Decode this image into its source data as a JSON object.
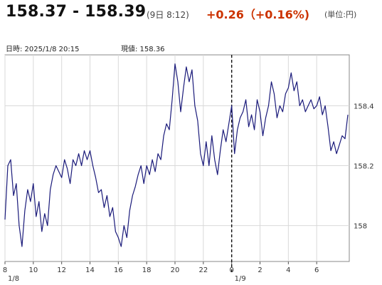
{
  "header": {
    "price_range": "158.37 - 158.39",
    "time": "(9日 8:12)",
    "change": "+0.26（+0.16%)",
    "unit": "(単位:円)"
  },
  "info": {
    "datetime": "日時: 2025/1/8  20:15",
    "current": "現値: 158.36"
  },
  "colors": {
    "line": "#1a1a7a",
    "change": "#cc3300",
    "grid": "#d9d9d9"
  },
  "chart_data": {
    "type": "line",
    "x_label_hours": [
      10,
      12,
      14,
      16,
      18,
      20,
      22,
      0,
      2,
      4,
      6,
      8
    ],
    "x_range_hours": [
      8,
      32.3
    ],
    "date_labels": [
      {
        "hour": 8,
        "label": "1/8"
      },
      {
        "hour": 24,
        "label": "1/9"
      }
    ],
    "divider_hour": 24,
    "y_ticks": [
      158,
      158.2,
      158.4
    ],
    "ylim": [
      157.88,
      158.57
    ],
    "series": [
      {
        "points": [
          [
            8.0,
            158.02
          ],
          [
            8.2,
            158.2
          ],
          [
            8.4,
            158.22
          ],
          [
            8.6,
            158.1
          ],
          [
            8.8,
            158.14
          ],
          [
            9.0,
            158.0
          ],
          [
            9.2,
            157.93
          ],
          [
            9.4,
            158.05
          ],
          [
            9.6,
            158.12
          ],
          [
            9.8,
            158.08
          ],
          [
            10.0,
            158.14
          ],
          [
            10.2,
            158.03
          ],
          [
            10.4,
            158.08
          ],
          [
            10.6,
            157.98
          ],
          [
            10.8,
            158.04
          ],
          [
            11.0,
            158.0
          ],
          [
            11.2,
            158.12
          ],
          [
            11.4,
            158.17
          ],
          [
            11.6,
            158.2
          ],
          [
            11.8,
            158.18
          ],
          [
            12.0,
            158.16
          ],
          [
            12.2,
            158.22
          ],
          [
            12.4,
            158.19
          ],
          [
            12.6,
            158.14
          ],
          [
            12.8,
            158.22
          ],
          [
            13.0,
            158.2
          ],
          [
            13.2,
            158.24
          ],
          [
            13.4,
            158.2
          ],
          [
            13.6,
            158.25
          ],
          [
            13.8,
            158.22
          ],
          [
            14.0,
            158.25
          ],
          [
            14.2,
            158.2
          ],
          [
            14.4,
            158.16
          ],
          [
            14.6,
            158.11
          ],
          [
            14.8,
            158.12
          ],
          [
            15.0,
            158.06
          ],
          [
            15.2,
            158.1
          ],
          [
            15.4,
            158.03
          ],
          [
            15.6,
            158.06
          ],
          [
            15.8,
            157.98
          ],
          [
            16.0,
            157.96
          ],
          [
            16.2,
            157.93
          ],
          [
            16.4,
            158.0
          ],
          [
            16.6,
            157.96
          ],
          [
            16.8,
            158.05
          ],
          [
            17.0,
            158.1
          ],
          [
            17.2,
            158.13
          ],
          [
            17.4,
            158.17
          ],
          [
            17.6,
            158.2
          ],
          [
            17.8,
            158.14
          ],
          [
            18.0,
            158.2
          ],
          [
            18.2,
            158.17
          ],
          [
            18.4,
            158.22
          ],
          [
            18.6,
            158.18
          ],
          [
            18.8,
            158.24
          ],
          [
            19.0,
            158.22
          ],
          [
            19.2,
            158.3
          ],
          [
            19.4,
            158.34
          ],
          [
            19.6,
            158.32
          ],
          [
            19.8,
            158.42
          ],
          [
            20.0,
            158.54
          ],
          [
            20.2,
            158.48
          ],
          [
            20.4,
            158.38
          ],
          [
            20.6,
            158.46
          ],
          [
            20.8,
            158.53
          ],
          [
            21.0,
            158.48
          ],
          [
            21.2,
            158.52
          ],
          [
            21.4,
            158.4
          ],
          [
            21.6,
            158.35
          ],
          [
            21.8,
            158.24
          ],
          [
            22.0,
            158.2
          ],
          [
            22.2,
            158.28
          ],
          [
            22.4,
            158.2
          ],
          [
            22.6,
            158.3
          ],
          [
            22.8,
            158.22
          ],
          [
            23.0,
            158.17
          ],
          [
            23.2,
            158.25
          ],
          [
            23.4,
            158.32
          ],
          [
            23.6,
            158.28
          ],
          [
            23.8,
            158.34
          ],
          [
            24.0,
            158.4
          ],
          [
            24.2,
            158.24
          ],
          [
            24.4,
            158.32
          ],
          [
            24.6,
            158.36
          ],
          [
            24.8,
            158.38
          ],
          [
            25.0,
            158.42
          ],
          [
            25.2,
            158.33
          ],
          [
            25.4,
            158.37
          ],
          [
            25.6,
            158.32
          ],
          [
            25.8,
            158.42
          ],
          [
            26.0,
            158.38
          ],
          [
            26.2,
            158.3
          ],
          [
            26.4,
            158.36
          ],
          [
            26.6,
            158.4
          ],
          [
            26.8,
            158.48
          ],
          [
            27.0,
            158.44
          ],
          [
            27.2,
            158.36
          ],
          [
            27.4,
            158.4
          ],
          [
            27.6,
            158.38
          ],
          [
            27.8,
            158.44
          ],
          [
            28.0,
            158.46
          ],
          [
            28.2,
            158.51
          ],
          [
            28.4,
            158.45
          ],
          [
            28.6,
            158.48
          ],
          [
            28.8,
            158.4
          ],
          [
            29.0,
            158.42
          ],
          [
            29.2,
            158.38
          ],
          [
            29.4,
            158.4
          ],
          [
            29.6,
            158.42
          ],
          [
            29.8,
            158.39
          ],
          [
            30.0,
            158.4
          ],
          [
            30.2,
            158.43
          ],
          [
            30.4,
            158.37
          ],
          [
            30.6,
            158.4
          ],
          [
            30.8,
            158.33
          ],
          [
            31.0,
            158.25
          ],
          [
            31.2,
            158.28
          ],
          [
            31.4,
            158.24
          ],
          [
            31.6,
            158.27
          ],
          [
            31.8,
            158.3
          ],
          [
            32.0,
            158.29
          ],
          [
            32.2,
            158.37
          ]
        ]
      }
    ],
    "grid": true,
    "legend": "none"
  }
}
